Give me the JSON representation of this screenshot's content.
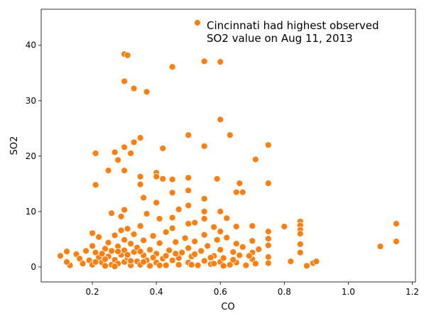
{
  "chart_data": {
    "type": "scatter",
    "title": "",
    "xlabel": "CO",
    "ylabel": "SO2",
    "xlim": [
      0.04,
      1.21
    ],
    "ylim": [
      -2.7,
      46.5
    ],
    "x_ticks": [
      0.2,
      0.4,
      0.6,
      0.8,
      1.0,
      1.2
    ],
    "x_tick_labels": [
      "0.2",
      "0.4",
      "0.6",
      "0.8",
      "1.0",
      "1.2"
    ],
    "y_ticks": [
      0,
      10,
      20,
      30,
      40
    ],
    "y_tick_labels": [
      "0",
      "10",
      "20",
      "30",
      "40"
    ],
    "grid": false,
    "legend_position": "top-right",
    "marker_color": "#ff7f0e",
    "marker_edge_color": "#ffffff",
    "series": [
      {
        "name": "Cincinnati had highest observed\nSO2 value on Aug 11, 2013",
        "points": [
          [
            0.3,
            38.4
          ],
          [
            0.31,
            38.2
          ],
          [
            0.45,
            36.1
          ],
          [
            0.55,
            37.1
          ],
          [
            0.6,
            37.0
          ],
          [
            0.3,
            33.5
          ],
          [
            0.33,
            32.2
          ],
          [
            0.37,
            31.6
          ],
          [
            0.6,
            26.6
          ],
          [
            0.5,
            23.8
          ],
          [
            0.63,
            23.8
          ],
          [
            0.35,
            23.3
          ],
          [
            0.33,
            22.5
          ],
          [
            0.3,
            21.6
          ],
          [
            0.42,
            21.4
          ],
          [
            0.55,
            21.8
          ],
          [
            0.75,
            22.0
          ],
          [
            0.21,
            20.5
          ],
          [
            0.27,
            20.7
          ],
          [
            0.28,
            19.3
          ],
          [
            0.32,
            20.5
          ],
          [
            0.71,
            19.4
          ],
          [
            0.25,
            17.4
          ],
          [
            0.3,
            17.4
          ],
          [
            0.35,
            16.3
          ],
          [
            0.4,
            17.0
          ],
          [
            0.4,
            16.3
          ],
          [
            0.42,
            15.9
          ],
          [
            0.45,
            15.8
          ],
          [
            0.5,
            16.1
          ],
          [
            0.59,
            15.9
          ],
          [
            0.66,
            15.1
          ],
          [
            0.75,
            15.1
          ],
          [
            0.21,
            14.8
          ],
          [
            0.35,
            14.9
          ],
          [
            0.45,
            13.4
          ],
          [
            0.5,
            13.8
          ],
          [
            0.55,
            12.3
          ],
          [
            0.65,
            13.5
          ],
          [
            0.67,
            13.5
          ],
          [
            0.36,
            12.5
          ],
          [
            0.4,
            11.6
          ],
          [
            0.47,
            10.4
          ],
          [
            0.5,
            11.1
          ],
          [
            0.55,
            10.0
          ],
          [
            0.6,
            10.0
          ],
          [
            0.3,
            10.3
          ],
          [
            0.26,
            9.7
          ],
          [
            0.29,
            9.1
          ],
          [
            0.37,
            9.6
          ],
          [
            0.41,
            8.7
          ],
          [
            0.45,
            8.9
          ],
          [
            0.52,
            8.0
          ],
          [
            0.58,
            7.2
          ],
          [
            0.62,
            8.8
          ],
          [
            0.7,
            7.4
          ],
          [
            0.75,
            6.4
          ],
          [
            0.8,
            7.3
          ],
          [
            0.85,
            8.2
          ],
          [
            0.85,
            7.5
          ],
          [
            0.85,
            6.7
          ],
          [
            0.85,
            6.0
          ],
          [
            0.85,
            4.1
          ],
          [
            0.85,
            2.6
          ],
          [
            0.87,
            0.2
          ],
          [
            0.89,
            0.7
          ],
          [
            0.9,
            1.0
          ],
          [
            0.82,
            1.0
          ],
          [
            1.1,
            3.7
          ],
          [
            1.15,
            4.6
          ],
          [
            1.15,
            7.8
          ],
          [
            0.1,
            2.0
          ],
          [
            0.12,
            2.8
          ],
          [
            0.13,
            0.3
          ],
          [
            0.12,
            0.9
          ],
          [
            0.15,
            2.3
          ],
          [
            0.16,
            1.5
          ],
          [
            0.17,
            0.6
          ],
          [
            0.18,
            2.9
          ],
          [
            0.19,
            1.2
          ],
          [
            0.2,
            0.4
          ],
          [
            0.2,
            3.8
          ],
          [
            0.2,
            6.1
          ],
          [
            0.21,
            2.6
          ],
          [
            0.22,
            1.7
          ],
          [
            0.22,
            5.4
          ],
          [
            0.23,
            0.8
          ],
          [
            0.24,
            3.3
          ],
          [
            0.24,
            0.2
          ],
          [
            0.25,
            4.4
          ],
          [
            0.25,
            1.9
          ],
          [
            0.26,
            0.4
          ],
          [
            0.26,
            2.9
          ],
          [
            0.27,
            5.7
          ],
          [
            0.27,
            1.3
          ],
          [
            0.28,
            3.7
          ],
          [
            0.28,
            0.6
          ],
          [
            0.29,
            2.2
          ],
          [
            0.29,
            6.6
          ],
          [
            0.3,
            0.9
          ],
          [
            0.3,
            4.9
          ],
          [
            0.3,
            3.0
          ],
          [
            0.31,
            1.6
          ],
          [
            0.31,
            6.9
          ],
          [
            0.32,
            0.3
          ],
          [
            0.32,
            4.2
          ],
          [
            0.33,
            2.7
          ],
          [
            0.33,
            5.9
          ],
          [
            0.34,
            1.0
          ],
          [
            0.34,
            3.5
          ],
          [
            0.35,
            0.4
          ],
          [
            0.35,
            7.4
          ],
          [
            0.36,
            2.1
          ],
          [
            0.36,
            4.8
          ],
          [
            0.37,
            1.2
          ],
          [
            0.38,
            3.1
          ],
          [
            0.38,
            0.2
          ],
          [
            0.39,
            5.6
          ],
          [
            0.4,
            2.4
          ],
          [
            0.4,
            0.8
          ],
          [
            0.41,
            4.3
          ],
          [
            0.42,
            1.5
          ],
          [
            0.43,
            6.3
          ],
          [
            0.43,
            0.3
          ],
          [
            0.44,
            3.0
          ],
          [
            0.45,
            7.0
          ],
          [
            0.45,
            1.2
          ],
          [
            0.46,
            4.5
          ],
          [
            0.47,
            0.4
          ],
          [
            0.48,
            2.6
          ],
          [
            0.49,
            5.2
          ],
          [
            0.5,
            0.8
          ],
          [
            0.5,
            3.4
          ],
          [
            0.5,
            7.8
          ],
          [
            0.51,
            1.9
          ],
          [
            0.52,
            4.6
          ],
          [
            0.53,
            0.3
          ],
          [
            0.54,
            2.9
          ],
          [
            0.55,
            5.8
          ],
          [
            0.55,
            1.1
          ],
          [
            0.55,
            8.7
          ],
          [
            0.56,
            3.8
          ],
          [
            0.57,
            0.5
          ],
          [
            0.58,
            2.0
          ],
          [
            0.59,
            4.9
          ],
          [
            0.6,
            0.9
          ],
          [
            0.6,
            6.4
          ],
          [
            0.6,
            3.1
          ],
          [
            0.61,
            1.6
          ],
          [
            0.62,
            5.3
          ],
          [
            0.63,
            0.4
          ],
          [
            0.64,
            2.7
          ],
          [
            0.65,
            4.2
          ],
          [
            0.65,
            7.3
          ],
          [
            0.65,
            0.8
          ],
          [
            0.66,
            2.1
          ],
          [
            0.67,
            3.6
          ],
          [
            0.68,
            0.3
          ],
          [
            0.7,
            1.4
          ],
          [
            0.7,
            4.7
          ],
          [
            0.7,
            2.6
          ],
          [
            0.71,
            0.6
          ],
          [
            0.72,
            3.2
          ],
          [
            0.75,
            1.8
          ],
          [
            0.75,
            3.9
          ],
          [
            0.75,
            0.7
          ],
          [
            0.75,
            5.1
          ],
          [
            0.21,
            0.9
          ],
          [
            0.23,
            2.4
          ],
          [
            0.27,
            0.1
          ],
          [
            0.31,
            2.2
          ],
          [
            0.35,
            2.8
          ],
          [
            0.39,
            1.7
          ],
          [
            0.43,
            2.0
          ],
          [
            0.47,
            1.6
          ],
          [
            0.51,
            0.4
          ],
          [
            0.57,
            1.7
          ],
          [
            0.61,
            0.2
          ],
          [
            0.24,
            1.4
          ],
          [
            0.28,
            2.8
          ],
          [
            0.32,
            1.1
          ],
          [
            0.36,
            0.9
          ],
          [
            0.41,
            0.3
          ],
          [
            0.46,
            2.4
          ],
          [
            0.52,
            2.3
          ],
          [
            0.58,
            0.6
          ],
          [
            0.64,
            1.3
          ],
          [
            0.69,
            2.0
          ]
        ]
      }
    ]
  }
}
